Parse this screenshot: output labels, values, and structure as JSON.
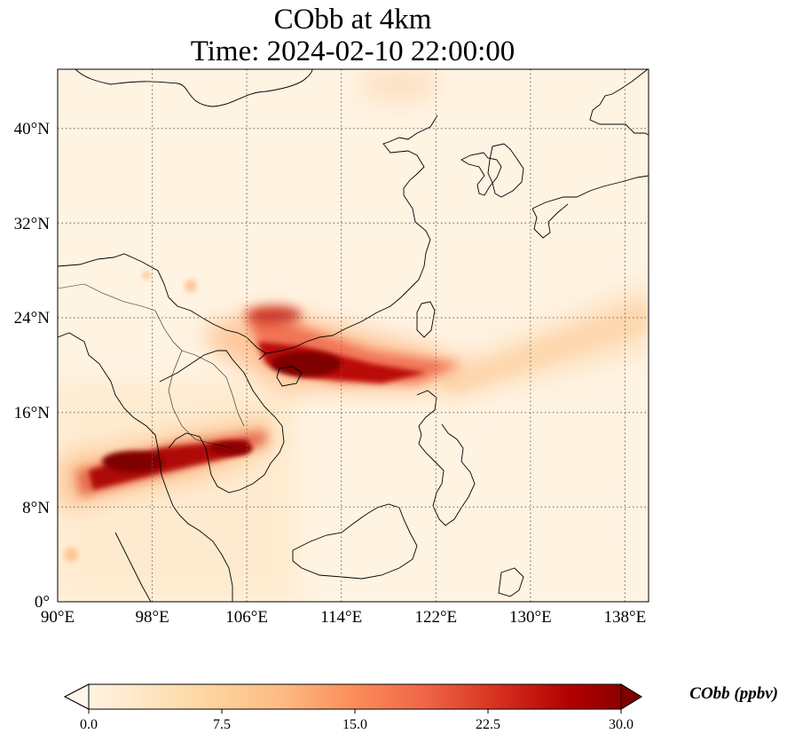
{
  "title": {
    "line1": "CObb at 4km",
    "line2": "Time: 2024-02-10 22:00:00"
  },
  "map": {
    "extent": {
      "lon": [
        90,
        140
      ],
      "lat": [
        0,
        45
      ]
    },
    "lon_ticks": [
      {
        "value": 90,
        "label": "90°E"
      },
      {
        "value": 98,
        "label": "98°E"
      },
      {
        "value": 106,
        "label": "106°E"
      },
      {
        "value": 114,
        "label": "114°E"
      },
      {
        "value": 122,
        "label": "122°E"
      },
      {
        "value": 130,
        "label": "130°E"
      },
      {
        "value": 138,
        "label": "138°E"
      }
    ],
    "lat_ticks": [
      {
        "value": 0,
        "label": "0°"
      },
      {
        "value": 8,
        "label": "8°N"
      },
      {
        "value": 16,
        "label": "16°N"
      },
      {
        "value": 24,
        "label": "24°N"
      },
      {
        "value": 32,
        "label": "32°N"
      },
      {
        "value": 40,
        "label": "40°N"
      }
    ],
    "gridlines": "dotted",
    "plumes": [
      {
        "name": "south-china-plume",
        "from": [
          106,
          25
        ],
        "to": [
          125,
          19.5
        ],
        "peak": 30
      },
      {
        "name": "indochina-plume",
        "from": [
          90,
          9
        ],
        "to": [
          105,
          14
        ],
        "peak": 30
      },
      {
        "name": "pacific-tail",
        "from": [
          120,
          17
        ],
        "to": [
          140,
          24
        ],
        "peak": 7
      }
    ]
  },
  "colorbar": {
    "label": "CObb (ppbv)",
    "min": 0.0,
    "max": 30.0,
    "ticks": [
      "0.0",
      "7.5",
      "15.0",
      "22.5",
      "30.0"
    ],
    "colormap": [
      "#fff7ec",
      "#fee8c8",
      "#fdd49e",
      "#fdbb84",
      "#fc8d59",
      "#ef6548",
      "#d7301f",
      "#b30000",
      "#7f0000"
    ],
    "extend": "both"
  }
}
